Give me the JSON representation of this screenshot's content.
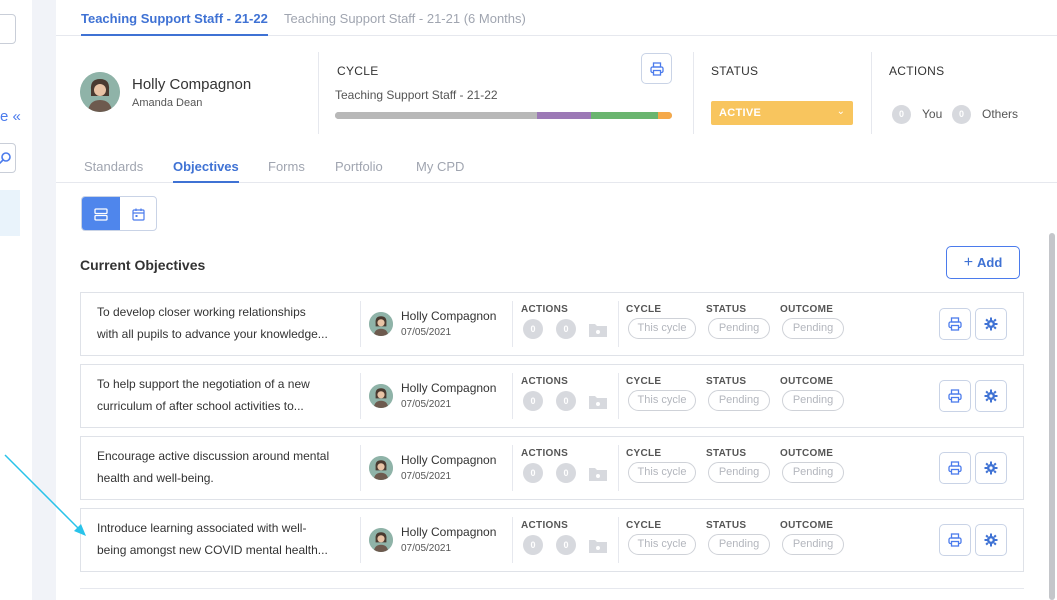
{
  "sidebar": {
    "collapse_fragment": "e «"
  },
  "top_tabs": [
    {
      "label": "Teaching Support Staff - 21-22"
    },
    {
      "label": "Teaching Support Staff - 21-21 (6 Months)"
    }
  ],
  "header": {
    "user_name": "Holly Compagnon",
    "user_sub": "Amanda Dean",
    "cycle_label": "CYCLE",
    "cycle_name": "Teaching Support Staff - 21-22",
    "status_label": "STATUS",
    "status_value": "ACTIVE",
    "actions_label": "ACTIONS",
    "you_count": "0",
    "you_label": "You",
    "others_count": "0",
    "others_label": "Others",
    "progress_segments": [
      {
        "color": "#b8b8b8",
        "fraction": 0.6
      },
      {
        "color": "#9c79b6",
        "fraction": 0.16
      },
      {
        "color": "#6ab56f",
        "fraction": 0.2
      },
      {
        "color": "#f5a94a",
        "fraction": 0.04
      }
    ]
  },
  "sub_tabs": [
    {
      "label": "Standards"
    },
    {
      "label": "Objectives"
    },
    {
      "label": "Forms"
    },
    {
      "label": "Portfolio"
    },
    {
      "label": "My CPD"
    }
  ],
  "section": {
    "title": "Current Objectives",
    "add_label": "Add"
  },
  "columns": {
    "actions": "ACTIONS",
    "cycle": "CYCLE",
    "status": "STATUS",
    "outcome": "OUTCOME"
  },
  "objectives": [
    {
      "line1": "To develop closer working relationships",
      "line2": "with all pupils to advance your knowledge...",
      "owner": "Holly Compagnon",
      "date": "07/05/2021",
      "count1": "0",
      "count2": "0",
      "cycle": "This cycle",
      "status": "Pending",
      "outcome": "Pending"
    },
    {
      "line1": "To help support the negotiation of a new",
      "line2": "curriculum of after school activities to...",
      "owner": "Holly Compagnon",
      "date": "07/05/2021",
      "count1": "0",
      "count2": "0",
      "cycle": "This cycle",
      "status": "Pending",
      "outcome": "Pending"
    },
    {
      "line1": "Encourage active discussion around mental",
      "line2": "health and well-being.",
      "owner": "Holly Compagnon",
      "date": "07/05/2021",
      "count1": "0",
      "count2": "0",
      "cycle": "This cycle",
      "status": "Pending",
      "outcome": "Pending"
    },
    {
      "line1": "Introduce learning associated with well-",
      "line2": "being amongst new COVID mental health...",
      "owner": "Holly Compagnon",
      "date": "07/05/2021",
      "count1": "0",
      "count2": "0",
      "cycle": "This cycle",
      "status": "Pending",
      "outcome": "Pending"
    }
  ],
  "colors": {
    "accent": "#3f72d4",
    "status_active": "#f8c55e",
    "annotation_arrow": "#29c3ea"
  }
}
